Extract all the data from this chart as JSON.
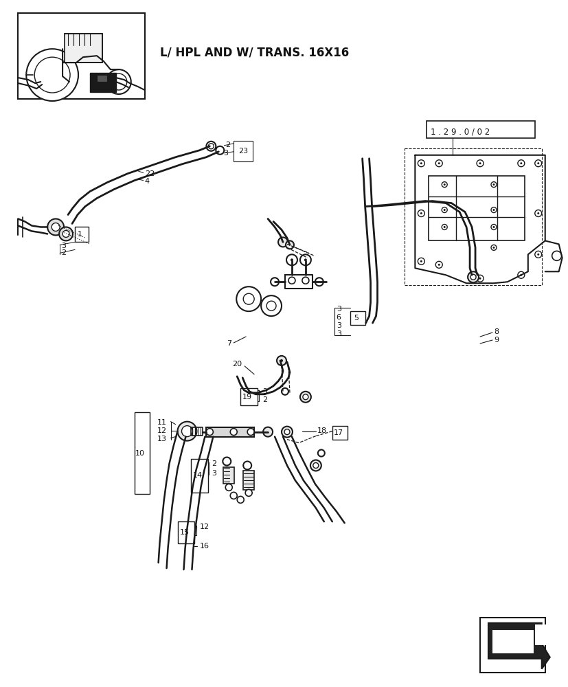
{
  "title": "L/ HPL AND W/ TRANS. 16X16",
  "ref_label": "1 . 2 9 . 0 / 0 2",
  "bg_color": "#ffffff",
  "line_color": "#1a1a1a",
  "page_width": 8.28,
  "page_height": 10.0
}
